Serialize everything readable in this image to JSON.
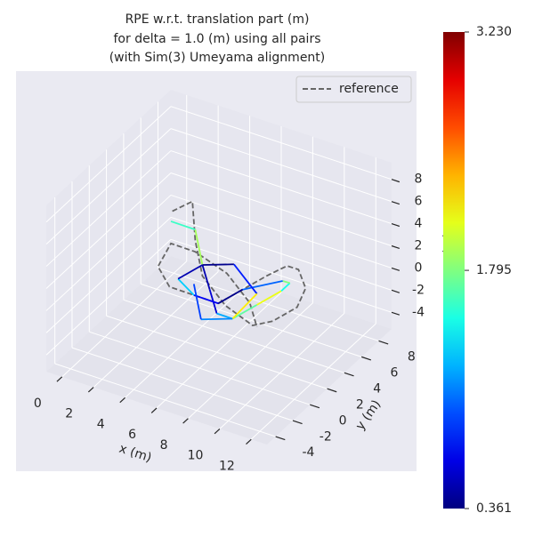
{
  "chart_data": {
    "type": "line3d",
    "title": [
      "RPE w.r.t. translation part (m)",
      "for delta = 1.0 (m) using all pairs",
      "(with Sim(3) Umeyama alignment)"
    ],
    "xlabel": "x (m)",
    "ylabel": "y (m)",
    "zlabel": "z (m)",
    "xlim": [
      -1,
      13
    ],
    "ylim": [
      -5,
      9.5
    ],
    "zlim": [
      -5.5,
      9.5
    ],
    "xticks": [
      0,
      2,
      4,
      6,
      8,
      10,
      12
    ],
    "yticks": [
      -4,
      -2,
      0,
      2,
      4,
      6,
      8
    ],
    "zticks": [
      -4,
      -2,
      0,
      2,
      4,
      6,
      8
    ],
    "grid": true,
    "legend": "upper right",
    "cmap": "jet",
    "clim": [
      0.361,
      3.23
    ],
    "cticks": [
      0.361,
      1.795,
      {
        "value": 3.23,
        "label": "3.230"
      }
    ],
    "series": [
      {
        "name": "reference",
        "color": "#666666",
        "dash": true,
        "x": [
          1,
          2,
          3,
          4,
          6,
          8,
          9,
          10,
          10,
          9,
          8,
          7,
          6,
          5,
          4,
          3,
          2,
          2,
          3,
          5,
          7,
          8
        ],
        "y": [
          6,
          6.5,
          5,
          4,
          3,
          2.5,
          3,
          4,
          5,
          6,
          6.5,
          6,
          5,
          4,
          3,
          2,
          2.5,
          4,
          5,
          5,
          4,
          3
        ],
        "z": [
          2,
          3,
          1,
          -1,
          -2,
          -2.5,
          -2,
          -1,
          0,
          0.5,
          0,
          -1,
          -2,
          -3,
          -2,
          -1,
          0,
          1,
          0,
          -1,
          -2,
          -3
        ]
      },
      {
        "x": [
          2,
          3,
          4,
          5,
          6,
          7,
          8,
          9,
          9,
          8,
          6,
          5,
          4,
          3,
          4,
          6,
          8,
          7,
          5,
          4
        ],
        "y": [
          4,
          5,
          4,
          3,
          2,
          2,
          3,
          4,
          5,
          6,
          5,
          4,
          3,
          3,
          4,
          4,
          3,
          2,
          2,
          3
        ],
        "z": [
          3,
          2,
          0,
          -1,
          -2,
          -2,
          -1,
          0,
          0,
          -1,
          -2,
          -3,
          -2,
          -1,
          0,
          1,
          0,
          -2,
          -3,
          -1
        ],
        "values": [
          1.6,
          1.9,
          0.5,
          0.6,
          1.2,
          1.7,
          2.1,
          1.5,
          1.8,
          1.0,
          0.4,
          0.7,
          1.3,
          0.5,
          0.4,
          0.8,
          2.2,
          1.1,
          0.9,
          0.6
        ]
      }
    ]
  }
}
